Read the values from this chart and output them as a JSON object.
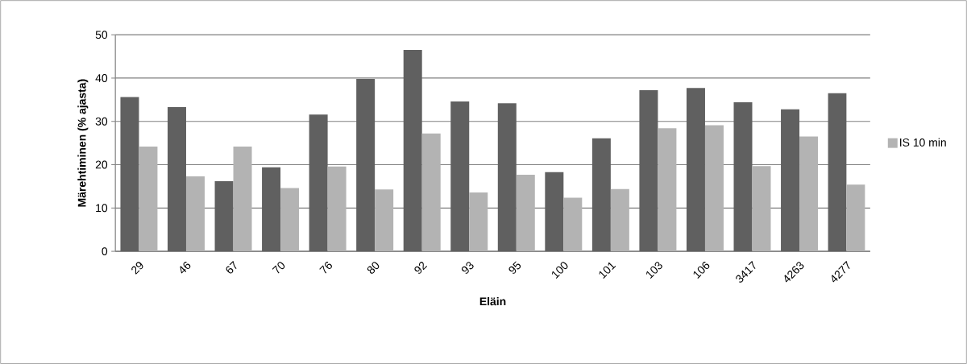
{
  "chart_data": {
    "type": "bar",
    "xlabel": "Eläin",
    "ylabel": "Märehtiminen (% ajasta)",
    "categories": [
      "29",
      "46",
      "67",
      "70",
      "76",
      "80",
      "92",
      "93",
      "95",
      "100",
      "101",
      "103",
      "106",
      "3417",
      "4263",
      "4277"
    ],
    "series": [
      {
        "color": "#606060",
        "values": [
          35.6,
          33.3,
          16.2,
          19.4,
          31.6,
          39.8,
          46.5,
          34.6,
          34.2,
          18.3,
          26.1,
          37.2,
          37.7,
          34.4,
          32.8,
          36.5
        ]
      },
      {
        "name": "IS 10 min",
        "color": "#b3b3b3",
        "values": [
          24.2,
          17.3,
          24.2,
          14.6,
          19.6,
          14.3,
          27.2,
          13.6,
          17.7,
          12.4,
          14.4,
          28.4,
          29.1,
          19.7,
          26.5,
          15.4
        ]
      }
    ],
    "ylim": [
      0,
      50
    ],
    "yticks": [
      0,
      10,
      20,
      30,
      40,
      50
    ],
    "grid": "y",
    "legend": "right"
  }
}
